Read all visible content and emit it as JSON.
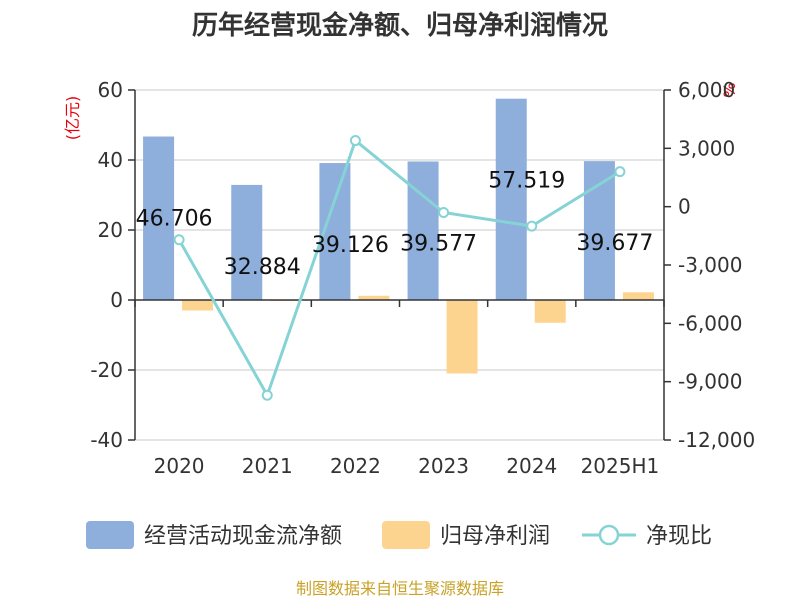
{
  "chart_data": {
    "type": "bar",
    "title": "历年经营现金净额、归母净利润情况",
    "categories": [
      "2020",
      "2021",
      "2022",
      "2023",
      "2024",
      "2025H1"
    ],
    "left_axis": {
      "unit": "(亿元)",
      "ylim": [
        -40,
        60
      ],
      "ticks": [
        60,
        40,
        20,
        0,
        -20,
        -40
      ],
      "tick_labels": [
        "60",
        "40",
        "20",
        "0",
        "-20",
        "-40"
      ]
    },
    "right_axis": {
      "unit": "%",
      "ylim": [
        -12000,
        6000
      ],
      "ticks": [
        6000,
        3000,
        0,
        -3000,
        -6000,
        -9000,
        -12000
      ],
      "tick_labels": [
        "6,000",
        "3,000",
        "0",
        "-3,000",
        "-6,000",
        "-9,000",
        "-12,000"
      ]
    },
    "series": [
      {
        "name": "经营活动现金流净额",
        "type": "bar",
        "axis": "left",
        "color": "#8eaedb",
        "values": [
          46.706,
          32.884,
          39.126,
          39.577,
          57.519,
          39.677
        ],
        "labels": [
          "46.706",
          "32.884",
          "39.126",
          "39.577",
          "57.519",
          "39.677"
        ]
      },
      {
        "name": "归母净利润",
        "type": "bar",
        "axis": "left",
        "color": "#fdd48f",
        "values": [
          -3.0,
          -0.3,
          1.2,
          -21.0,
          -6.5,
          2.2
        ]
      },
      {
        "name": "净现比",
        "type": "line",
        "axis": "right",
        "color": "#86d3d6",
        "values": [
          -1700,
          -9700,
          3400,
          -300,
          -1000,
          1800
        ]
      }
    ],
    "legend": [
      "经营活动现金流净额",
      "归母净利润",
      "净现比"
    ],
    "legend_position": "bottom",
    "grid": true,
    "source": "制图数据来自恒生聚源数据库"
  }
}
